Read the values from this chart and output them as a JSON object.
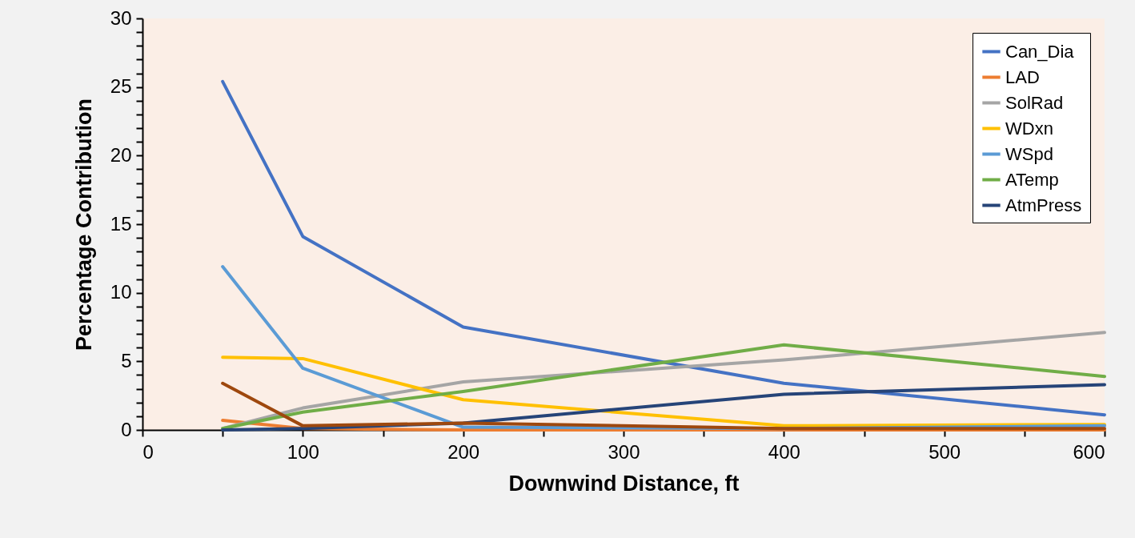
{
  "chart_data": {
    "type": "line",
    "xlabel": "Downwind Distance, ft",
    "ylabel": "Percentage Contribution",
    "x": [
      50,
      100,
      200,
      400,
      600
    ],
    "xlim": [
      0,
      600
    ],
    "xticks": [
      0,
      {
        "value": 50,
        "label": null
      },
      100,
      {
        "value": 150,
        "label": null
      },
      200,
      {
        "value": 250,
        "label": null
      },
      300,
      {
        "value": 350,
        "label": null
      },
      400,
      {
        "value": 450,
        "label": null
      },
      500,
      {
        "value": 550,
        "label": null
      },
      600
    ],
    "ylim": [
      0,
      30
    ],
    "yticks": [
      0,
      {
        "value": 1,
        "label": null
      },
      {
        "value": 2,
        "label": null
      },
      {
        "value": 3,
        "label": null
      },
      {
        "value": 4,
        "label": null
      },
      5,
      {
        "value": 6,
        "label": null
      },
      {
        "value": 7,
        "label": null
      },
      {
        "value": 8,
        "label": null
      },
      {
        "value": 9,
        "label": null
      },
      10,
      {
        "value": 11,
        "label": null
      },
      {
        "value": 12,
        "label": null
      },
      {
        "value": 13,
        "label": null
      },
      {
        "value": 14,
        "label": null
      },
      15,
      {
        "value": 16,
        "label": null
      },
      {
        "value": 17,
        "label": null
      },
      {
        "value": 18,
        "label": null
      },
      {
        "value": 19,
        "label": null
      },
      20,
      {
        "value": 21,
        "label": null
      },
      {
        "value": 22,
        "label": null
      },
      {
        "value": 23,
        "label": null
      },
      {
        "value": 24,
        "label": null
      },
      25,
      {
        "value": 26,
        "label": null
      },
      {
        "value": 27,
        "label": null
      },
      {
        "value": 28,
        "label": null
      },
      {
        "value": 29,
        "label": null
      },
      30
    ],
    "grid": false,
    "legend": "top right",
    "marker": "none",
    "line_style": "solid",
    "series": [
      {
        "name": "Can_Dia",
        "color": "#4472c4",
        "values": [
          25.4,
          14.1,
          7.5,
          3.4,
          1.1
        ]
      },
      {
        "name": "LAD",
        "color": "#ed7d31",
        "values": [
          0.7,
          0.1,
          0,
          0,
          0
        ]
      },
      {
        "name": "SolRad",
        "color": "#a5a5a5",
        "values": [
          0.1,
          1.6,
          3.5,
          5.1,
          7.1
        ]
      },
      {
        "name": "WDxn",
        "color": "#ffc000",
        "values": [
          5.3,
          5.2,
          2.2,
          0.3,
          0.4
        ]
      },
      {
        "name": "WSpd",
        "color": "#5b9bd5",
        "values": [
          11.9,
          4.5,
          0.2,
          0.1,
          0.3
        ]
      },
      {
        "name": "ATemp",
        "color": "#70ad47",
        "values": [
          0.1,
          1.3,
          2.8,
          6.2,
          3.9
        ]
      },
      {
        "name": "AtmPress",
        "color": "#264478",
        "values": [
          0,
          0.1,
          0.5,
          2.6,
          3.3
        ]
      },
      {
        "color": "#9e480e",
        "values": [
          3.4,
          0.3,
          0.5,
          0.1,
          0.1
        ]
      }
    ]
  }
}
